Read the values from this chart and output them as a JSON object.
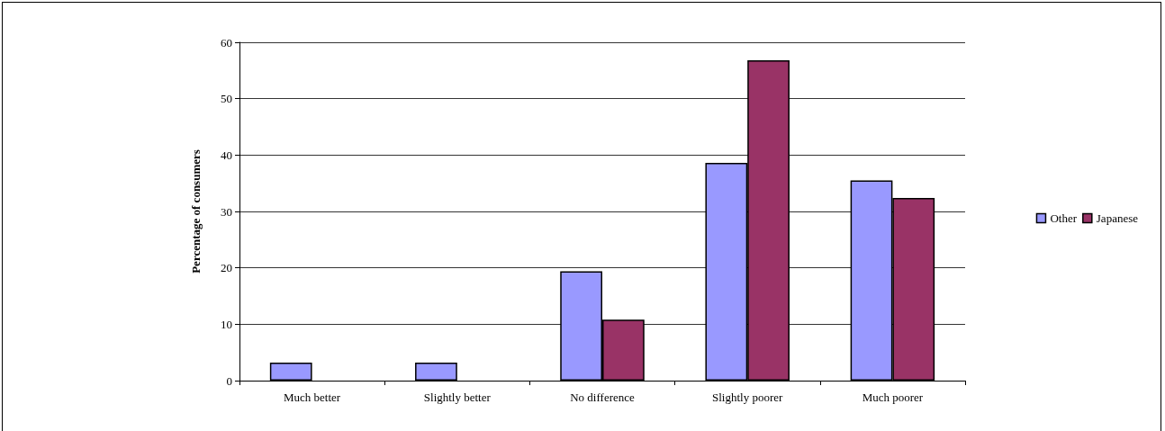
{
  "chart_data": {
    "type": "bar",
    "ylabel": "Percentage of consumers",
    "categories": [
      "Much better",
      "Slightly better",
      "No difference",
      "Slightly poorer",
      "Much poorer"
    ],
    "series": [
      {
        "name": "Other",
        "color": "#9999ff",
        "values": [
          3.2,
          3.2,
          19.4,
          38.6,
          35.5
        ]
      },
      {
        "name": "Japanese",
        "color": "#993366",
        "values": [
          null,
          null,
          10.8,
          56.8,
          32.4
        ]
      }
    ],
    "ylim": [
      0,
      60
    ],
    "yticks": [
      0,
      10,
      20,
      30,
      40,
      50,
      60
    ],
    "grid": "y",
    "legend": "right"
  }
}
